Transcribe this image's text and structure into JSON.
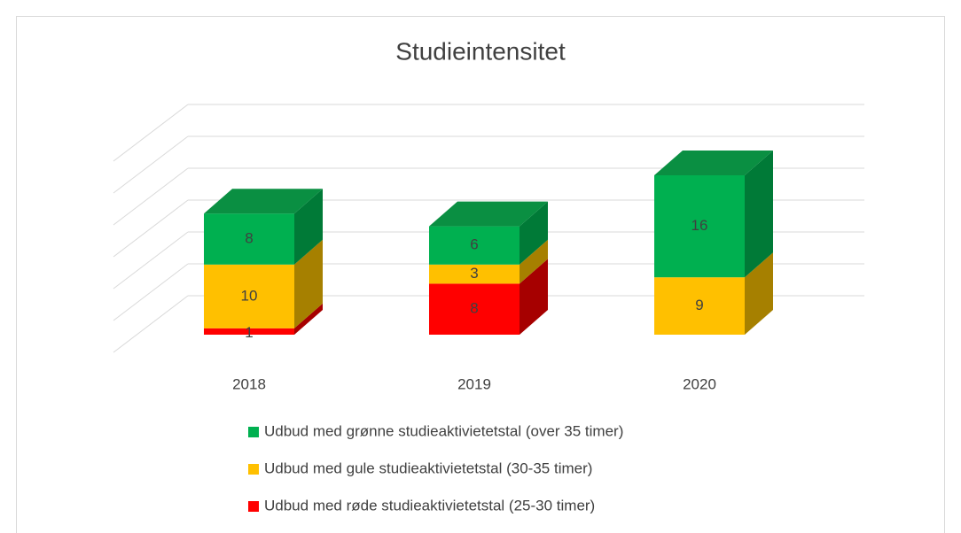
{
  "chart_data": {
    "type": "bar3d_stacked",
    "title": "Studieintensitet",
    "categories": [
      "2018",
      "2019",
      "2020"
    ],
    "series": [
      {
        "name": "Udbud med grønne studieaktivietetstal (over 35 timer)",
        "color": "#00b050",
        "side_color": "#007a37",
        "top_color": "#0a8f42",
        "values": [
          8,
          6,
          16
        ]
      },
      {
        "name": "Udbud med gule studieaktivietetstal (30-35 timer)",
        "color": "#ffc000",
        "side_color": "#a68000",
        "top_color": "#d9a300",
        "values": [
          10,
          3,
          9
        ]
      },
      {
        "name": "Udbud med røde studieaktivietetstal (25-30 timer)",
        "color": "#ff0000",
        "side_color": "#a60000",
        "top_color": "#d00000",
        "values": [
          1,
          8,
          null
        ]
      }
    ],
    "ylim": [
      0,
      30
    ],
    "yticks": [
      0,
      5,
      10,
      15,
      20,
      25,
      30
    ],
    "grid": true,
    "legend": "bottom"
  }
}
